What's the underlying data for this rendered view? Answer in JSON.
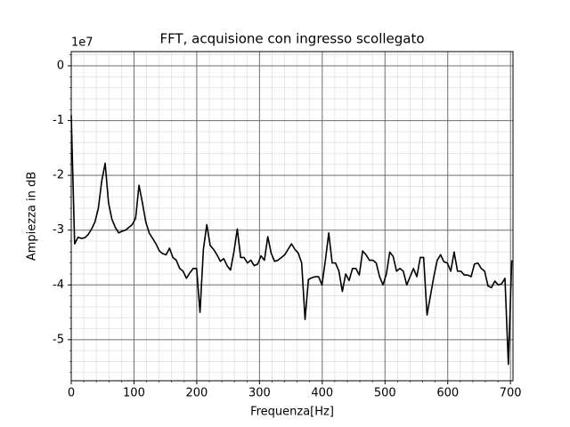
{
  "chart_data": {
    "type": "line",
    "title": "FFT, acquisione con ingresso scollegato",
    "x_label": "Frequenza[Hz]",
    "y_label": "Ampiezza in dB",
    "y_offset_label": "1e7",
    "xlim": [
      0,
      704
    ],
    "ylim": [
      -5.75,
      0.26
    ],
    "xticks": [
      0,
      100,
      200,
      300,
      400,
      500,
      600,
      700
    ],
    "yticks": [
      0,
      -1,
      -2,
      -3,
      -4,
      -5
    ],
    "x_minor_ticks": [
      20,
      40,
      60,
      80,
      120,
      140,
      160,
      180,
      220,
      240,
      260,
      280,
      320,
      340,
      360,
      380,
      420,
      440,
      460,
      480,
      520,
      540,
      560,
      580,
      620,
      640,
      660,
      680
    ],
    "y_minor_ticks": [
      0.2,
      -0.2,
      -0.4,
      -0.6,
      -0.8,
      -1.2,
      -1.4,
      -1.6,
      -1.8,
      -2.2,
      -2.4,
      -2.6,
      -2.8,
      -3.2,
      -3.4,
      -3.6,
      -3.8,
      -4.2,
      -4.4,
      -4.6,
      -4.8,
      -5.2,
      -5.4,
      -5.6
    ],
    "grid": true,
    "minor_grid": true,
    "x": [
      0,
      5.4,
      10.8,
      16.2,
      21.6,
      27,
      32.4,
      37.8,
      43.2,
      48.6,
      54,
      59.4,
      64.8,
      70.2,
      75.6,
      81,
      86.4,
      91.8,
      97.2,
      102.6,
      108,
      113.4,
      118.8,
      124.2,
      129.6,
      135,
      140.4,
      145.8,
      151.2,
      156.6,
      162,
      167.4,
      172.8,
      178.2,
      183.6,
      189,
      194.4,
      199.8,
      205.2,
      210.6,
      216,
      221.4,
      226.8,
      232.2,
      237.6,
      243,
      248.4,
      253.8,
      259.2,
      264.6,
      270,
      275.4,
      280.8,
      286.2,
      291.6,
      297,
      302.4,
      307.8,
      313.2,
      318.6,
      324,
      329.4,
      334.8,
      340.2,
      345.6,
      351,
      356.4,
      361.8,
      367.2,
      372.6,
      378,
      383.4,
      388.8,
      394.2,
      399.6,
      405,
      410.4,
      415.8,
      421.2,
      426.6,
      432,
      437.4,
      442.8,
      448.2,
      453.6,
      459,
      464.4,
      469.8,
      475.2,
      480.6,
      486,
      491.4,
      496.8,
      502.2,
      507.6,
      513,
      518.4,
      523.8,
      529.2,
      534.6,
      540,
      545.4,
      550.8,
      556.2,
      561.6,
      567,
      572.4,
      577.8,
      583.2,
      588.6,
      594,
      599.4,
      604.8,
      610.2,
      615.6,
      621,
      626.4,
      631.8,
      637.2,
      642.6,
      648,
      653.4,
      658.8,
      664.2,
      669.6,
      675,
      680.4,
      685.8,
      691.2,
      696.6,
      702
    ],
    "series": [
      {
        "color": "#000000",
        "values": [
          -0.9,
          -3.25,
          -3.13,
          -3.15,
          -3.14,
          -3.08,
          -2.98,
          -2.85,
          -2.6,
          -2.1,
          -1.78,
          -2.5,
          -2.8,
          -2.95,
          -3.05,
          -3.02,
          -3.0,
          -2.95,
          -2.9,
          -2.78,
          -2.18,
          -2.5,
          -2.85,
          -3.05,
          -3.15,
          -3.25,
          -3.38,
          -3.43,
          -3.45,
          -3.33,
          -3.5,
          -3.55,
          -3.7,
          -3.75,
          -3.88,
          -3.78,
          -3.7,
          -3.7,
          -4.5,
          -3.35,
          -2.9,
          -3.28,
          -3.35,
          -3.45,
          -3.57,
          -3.52,
          -3.65,
          -3.73,
          -3.4,
          -2.98,
          -3.5,
          -3.5,
          -3.6,
          -3.55,
          -3.65,
          -3.62,
          -3.47,
          -3.55,
          -3.12,
          -3.42,
          -3.57,
          -3.55,
          -3.5,
          -3.45,
          -3.35,
          -3.25,
          -3.35,
          -3.42,
          -3.6,
          -4.63,
          -3.9,
          -3.87,
          -3.85,
          -3.85,
          -4.0,
          -3.55,
          -3.05,
          -3.6,
          -3.6,
          -3.75,
          -4.12,
          -3.8,
          -3.92,
          -3.7,
          -3.7,
          -3.82,
          -3.38,
          -3.45,
          -3.55,
          -3.55,
          -3.6,
          -3.85,
          -4.0,
          -3.8,
          -3.4,
          -3.48,
          -3.75,
          -3.7,
          -3.75,
          -4.0,
          -3.85,
          -3.7,
          -3.85,
          -3.5,
          -3.5,
          -4.55,
          -4.2,
          -3.85,
          -3.55,
          -3.45,
          -3.58,
          -3.6,
          -3.75,
          -3.4,
          -3.75,
          -3.75,
          -3.82,
          -3.82,
          -3.85,
          -3.62,
          -3.6,
          -3.7,
          -3.75,
          -4.02,
          -4.05,
          -3.93,
          -4.0,
          -3.98,
          -3.88,
          -5.45,
          -3.55
        ]
      }
    ]
  }
}
